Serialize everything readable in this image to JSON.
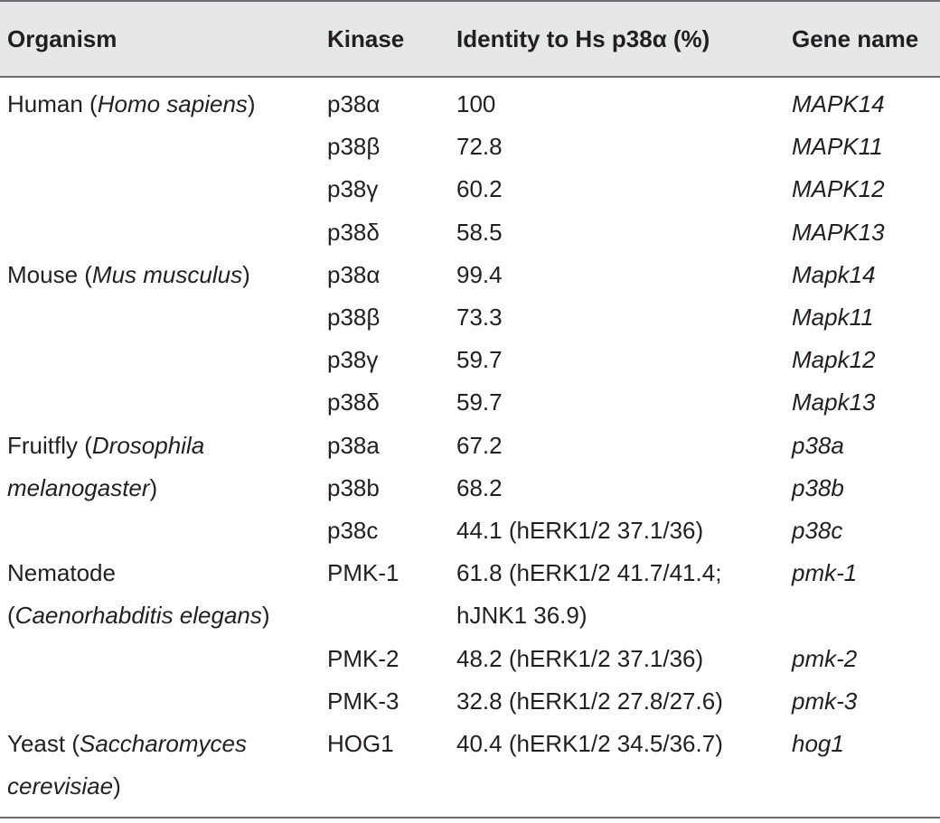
{
  "header": {
    "organism": "Organism",
    "kinase": "Kinase",
    "identity": "Identity to Hs p38α (%)",
    "gene": "Gene name"
  },
  "rows": [
    {
      "organism": [
        {
          "t": "Human ("
        },
        {
          "t": "Homo sapiens",
          "i": true
        },
        {
          "t": ")"
        }
      ],
      "kinase": "p38α",
      "identity": "100",
      "gene": "MAPK14"
    },
    {
      "organism": [],
      "kinase": "p38β",
      "identity": "72.8",
      "gene": "MAPK11"
    },
    {
      "organism": [],
      "kinase": "p38γ",
      "identity": "60.2",
      "gene": "MAPK12"
    },
    {
      "organism": [],
      "kinase": "p38δ",
      "identity": "58.5",
      "gene": "MAPK13"
    },
    {
      "organism": [
        {
          "t": "Mouse ("
        },
        {
          "t": "Mus musculus",
          "i": true
        },
        {
          "t": ")"
        }
      ],
      "kinase": "p38α",
      "identity": "99.4",
      "gene": "Mapk14"
    },
    {
      "organism": [],
      "kinase": "p38β",
      "identity": "73.3",
      "gene": "Mapk11"
    },
    {
      "organism": [],
      "kinase": "p38γ",
      "identity": "59.7",
      "gene": "Mapk12"
    },
    {
      "organism": [],
      "kinase": "p38δ",
      "identity": "59.7",
      "gene": "Mapk13"
    },
    {
      "organism": [
        {
          "t": "Fruitfly ("
        },
        {
          "t": "Drosophila",
          "i": true
        }
      ],
      "kinase": "p38a",
      "identity": "67.2",
      "gene": "p38a"
    },
    {
      "organism": [
        {
          "t": "melanogaster",
          "i": true
        },
        {
          "t": ")"
        }
      ],
      "kinase": "p38b",
      "identity": "68.2",
      "gene": "p38b"
    },
    {
      "organism": [],
      "kinase": "p38c",
      "identity": "44.1 (hERK1/2 37.1/36)",
      "gene": "p38c"
    },
    {
      "organism": [
        {
          "t": "Nematode"
        }
      ],
      "kinase": "PMK-1",
      "identity": "61.8 (hERK1/2 41.7/41.4;",
      "gene": "pmk-1"
    },
    {
      "organism": [
        {
          "t": "("
        },
        {
          "t": "Caenorhabditis elegans",
          "i": true
        },
        {
          "t": ")"
        }
      ],
      "kinase": "",
      "identity": "hJNK1 36.9)",
      "gene": ""
    },
    {
      "organism": [],
      "kinase": "PMK-2",
      "identity": "48.2 (hERK1/2 37.1/36)",
      "gene": "pmk-2"
    },
    {
      "organism": [],
      "kinase": "PMK-3",
      "identity": "32.8 (hERK1/2 27.8/27.6)",
      "gene": "pmk-3"
    },
    {
      "organism": [
        {
          "t": "Yeast ("
        },
        {
          "t": "Saccharomyces",
          "i": true
        }
      ],
      "kinase": "HOG1",
      "identity": "40.4 (hERK1/2 34.5/36.7)",
      "gene": "hog1"
    },
    {
      "organism": [
        {
          "t": "cerevisiae",
          "i": true
        },
        {
          "t": ")"
        }
      ],
      "kinase": "",
      "identity": "",
      "gene": ""
    }
  ]
}
